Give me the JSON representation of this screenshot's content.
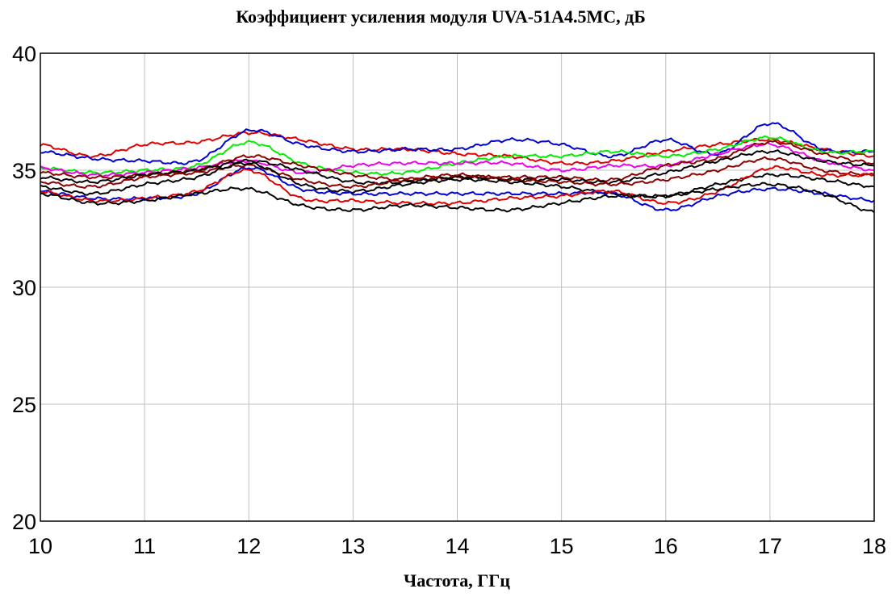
{
  "chart_data": {
    "type": "line",
    "title": "Коэффициент усиления модуля UVA-51A4.5MC, дБ",
    "xlabel": "Частота, ГГц",
    "ylabel": "",
    "xlim": [
      10,
      18
    ],
    "ylim": [
      20,
      40
    ],
    "x_ticks": [
      "10",
      "11",
      "12",
      "13",
      "14",
      "15",
      "16",
      "17",
      "18"
    ],
    "y_ticks": [
      "20",
      "25",
      "30",
      "35",
      "40"
    ],
    "grid": true,
    "x": [
      10,
      10.5,
      11,
      11.5,
      12,
      12.5,
      13,
      13.5,
      14,
      14.5,
      15,
      15.5,
      16,
      16.5,
      17,
      17.5,
      18
    ],
    "series": [
      {
        "color": "#e00000",
        "values": [
          36.1,
          35.6,
          36.1,
          36.2,
          36.6,
          36.3,
          35.9,
          35.9,
          35.7,
          35.6,
          35.3,
          35.4,
          35.8,
          36.1,
          36.3,
          35.9,
          35.6
        ]
      },
      {
        "color": "#0000d0",
        "values": [
          35.8,
          35.5,
          35.4,
          35.4,
          36.7,
          36.1,
          35.8,
          35.9,
          35.9,
          36.3,
          36.1,
          35.6,
          36.3,
          35.7,
          37.0,
          35.9,
          35.8
        ]
      },
      {
        "color": "#00ee00",
        "values": [
          35.1,
          34.9,
          35.0,
          35.2,
          36.2,
          35.3,
          34.9,
          34.9,
          35.3,
          35.6,
          35.6,
          35.8,
          35.6,
          35.9,
          36.4,
          35.8,
          35.8
        ]
      },
      {
        "color": "#ee00ee",
        "values": [
          35.1,
          34.8,
          34.9,
          35.1,
          35.4,
          34.9,
          35.2,
          35.3,
          35.3,
          35.3,
          35.0,
          35.2,
          35.2,
          35.7,
          36.1,
          35.4,
          35.0
        ]
      },
      {
        "color": "#8b0000",
        "values": [
          34.9,
          34.7,
          34.8,
          35.0,
          35.6,
          35.2,
          34.8,
          34.6,
          34.7,
          34.7,
          34.7,
          34.6,
          35.2,
          35.5,
          36.2,
          35.7,
          35.3
        ]
      },
      {
        "color": "#000000",
        "values": [
          34.7,
          34.5,
          34.8,
          35.0,
          35.4,
          35.0,
          34.5,
          34.5,
          34.7,
          34.6,
          34.6,
          34.5,
          34.9,
          35.4,
          35.8,
          35.4,
          35.2
        ]
      },
      {
        "color": "#8b0000",
        "values": [
          34.5,
          34.3,
          34.7,
          34.9,
          35.2,
          34.6,
          34.3,
          34.6,
          34.8,
          34.6,
          34.5,
          34.4,
          34.6,
          35.0,
          35.5,
          35.0,
          34.8
        ]
      },
      {
        "color": "#000000",
        "values": [
          34.3,
          34.0,
          34.4,
          34.7,
          35.3,
          34.4,
          34.1,
          34.4,
          34.6,
          34.5,
          34.3,
          34.0,
          33.9,
          34.4,
          34.8,
          34.6,
          34.3
        ]
      },
      {
        "color": "#0000d0",
        "values": [
          34.1,
          33.8,
          33.8,
          34.0,
          35.1,
          34.2,
          34.0,
          34.0,
          34.0,
          34.0,
          34.0,
          34.0,
          33.3,
          33.9,
          34.2,
          34.0,
          33.7
        ]
      },
      {
        "color": "#e00000",
        "values": [
          34.1,
          33.7,
          33.8,
          34.1,
          35.0,
          33.8,
          33.7,
          33.6,
          33.6,
          33.8,
          33.9,
          34.1,
          33.6,
          34.1,
          35.1,
          34.8,
          34.8
        ]
      },
      {
        "color": "#000000",
        "values": [
          34.0,
          33.6,
          33.7,
          34.0,
          34.2,
          33.5,
          33.3,
          33.5,
          33.4,
          33.3,
          33.6,
          33.9,
          33.9,
          34.2,
          34.4,
          34.0,
          33.2
        ]
      }
    ]
  }
}
